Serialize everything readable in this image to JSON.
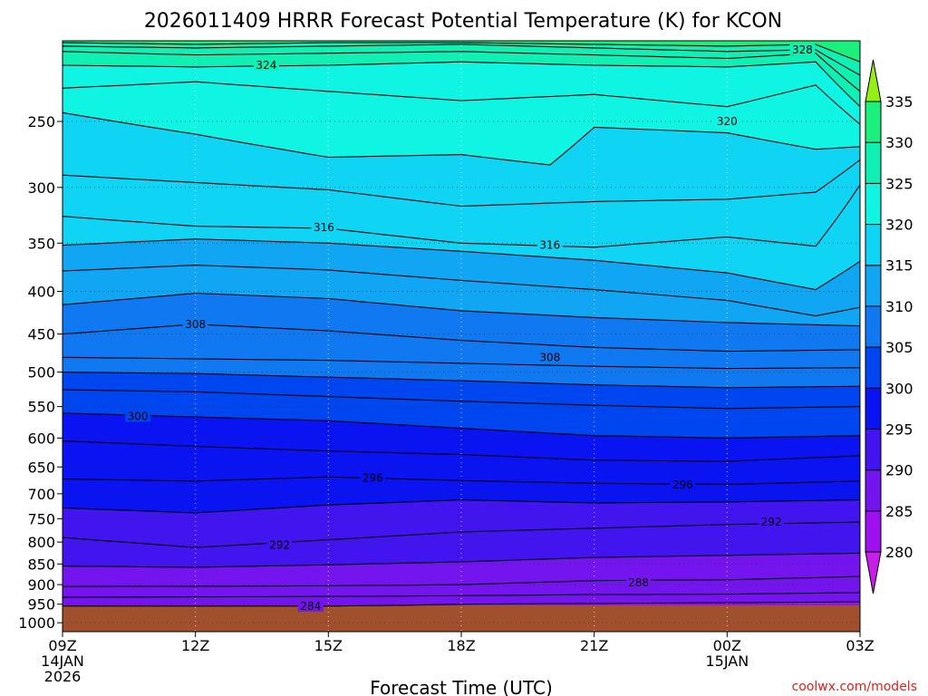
{
  "chart_data": {
    "type": "contour",
    "title": "2026011409 HRRR Forecast Potential Temperature (K) for KCON",
    "xlabel": "Forecast Time (UTC)",
    "ylabel": "",
    "x_ticks": [
      {
        "hour": 9,
        "line1": "09Z",
        "line2": "14JAN",
        "line3": "2026"
      },
      {
        "hour": 12,
        "line1": "12Z",
        "line2": "",
        "line3": ""
      },
      {
        "hour": 15,
        "line1": "15Z",
        "line2": "",
        "line3": ""
      },
      {
        "hour": 18,
        "line1": "18Z",
        "line2": "",
        "line3": ""
      },
      {
        "hour": 21,
        "line1": "21Z",
        "line2": "",
        "line3": ""
      },
      {
        "hour": 24,
        "line1": "00Z",
        "line2": "15JAN",
        "line3": ""
      },
      {
        "hour": 27,
        "line1": "03Z",
        "line2": "",
        "line3": ""
      }
    ],
    "xlim": [
      9,
      27
    ],
    "y_ticks": [
      250,
      300,
      350,
      400,
      450,
      500,
      550,
      600,
      650,
      700,
      750,
      800,
      850,
      900,
      950,
      1000
    ],
    "y_tick_labels": [
      "250",
      "300",
      "350",
      "400",
      "450",
      "500",
      "550",
      "600",
      "650",
      "700",
      "750",
      "800",
      "850",
      "900",
      "950",
      "1000"
    ],
    "ylim": [
      1025,
      200
    ],
    "y_scale": "log-pressure",
    "grid": true,
    "colorbar": {
      "levels": [
        280,
        285,
        290,
        295,
        300,
        305,
        310,
        315,
        320,
        325,
        330,
        335
      ],
      "colors": [
        "#c81ee8",
        "#9e10f0",
        "#7414ee",
        "#4214f0",
        "#0a14f2",
        "#0046f0",
        "#1078f0",
        "#10a6f4",
        "#10d4f4",
        "#10f4e4",
        "#10f0b4",
        "#1cf07c",
        "#16f02c",
        "#94f014"
      ]
    },
    "contours": [
      {
        "level": 284,
        "label": "284",
        "points": [
          [
            9,
            955
          ],
          [
            12,
            955
          ],
          [
            15,
            955
          ],
          [
            16.7,
            953
          ],
          [
            18,
            950
          ],
          [
            21,
            948
          ],
          [
            24,
            946
          ],
          [
            27,
            944
          ]
        ]
      },
      {
        "level": 286,
        "label": "",
        "points": [
          [
            9,
            932
          ],
          [
            12,
            931
          ],
          [
            15,
            930
          ],
          [
            18,
            928
          ],
          [
            21,
            925
          ],
          [
            24,
            924
          ],
          [
            27,
            920
          ]
        ]
      },
      {
        "level": 288,
        "label": "288",
        "points": [
          [
            9,
            905
          ],
          [
            12,
            904
          ],
          [
            15,
            903
          ],
          [
            18,
            900
          ],
          [
            21,
            890
          ],
          [
            24,
            888
          ],
          [
            27,
            880
          ]
        ]
      },
      {
        "level": 290,
        "label": "",
        "points": [
          [
            9,
            855
          ],
          [
            12,
            858
          ],
          [
            15,
            852
          ],
          [
            18,
            845
          ],
          [
            21,
            835
          ],
          [
            24,
            830
          ],
          [
            27,
            825
          ]
        ]
      },
      {
        "level": 292,
        "label": "292",
        "points": [
          [
            9,
            790
          ],
          [
            12,
            812
          ],
          [
            15,
            795
          ],
          [
            18,
            778
          ],
          [
            21,
            770
          ],
          [
            24,
            762
          ],
          [
            27,
            757
          ]
        ]
      },
      {
        "level": 294,
        "label": "",
        "points": [
          [
            9,
            728
          ],
          [
            12,
            738
          ],
          [
            15,
            722
          ],
          [
            18,
            712
          ],
          [
            21,
            718
          ],
          [
            24,
            716
          ],
          [
            27,
            712
          ]
        ]
      },
      {
        "level": 296,
        "label": "296",
        "points": [
          [
            9,
            672
          ],
          [
            12,
            676
          ],
          [
            15,
            668
          ],
          [
            18,
            675
          ],
          [
            21,
            680
          ],
          [
            24,
            682
          ],
          [
            27,
            676
          ]
        ]
      },
      {
        "level": 298,
        "label": "",
        "points": [
          [
            9,
            605
          ],
          [
            12,
            614
          ],
          [
            15,
            622
          ],
          [
            18,
            628
          ],
          [
            21,
            638
          ],
          [
            24,
            640
          ],
          [
            27,
            630
          ]
        ]
      },
      {
        "level": 300,
        "label": "300",
        "points": [
          [
            9,
            560
          ],
          [
            12,
            566
          ],
          [
            15,
            572
          ],
          [
            18,
            584
          ],
          [
            21,
            596
          ],
          [
            24,
            600
          ],
          [
            27,
            596
          ]
        ]
      },
      {
        "level": 302,
        "label": "",
        "points": [
          [
            9,
            525
          ],
          [
            12,
            528
          ],
          [
            15,
            535
          ],
          [
            18,
            542
          ],
          [
            21,
            548
          ],
          [
            24,
            553
          ],
          [
            27,
            550
          ]
        ]
      },
      {
        "level": 304,
        "label": "",
        "points": [
          [
            9,
            500
          ],
          [
            12,
            502
          ],
          [
            15,
            507
          ],
          [
            18,
            512
          ],
          [
            21,
            518
          ],
          [
            24,
            522
          ],
          [
            27,
            520
          ]
        ]
      },
      {
        "level": 306,
        "label": "",
        "points": [
          [
            9,
            480
          ],
          [
            12,
            482
          ],
          [
            15,
            484
          ],
          [
            18,
            488
          ],
          [
            21,
            492
          ],
          [
            24,
            495
          ],
          [
            27,
            494
          ]
        ]
      },
      {
        "level": 308,
        "label": "308",
        "points": [
          [
            9,
            450
          ],
          [
            12,
            438
          ],
          [
            15,
            446
          ],
          [
            18,
            458
          ],
          [
            21,
            467
          ],
          [
            24,
            472
          ],
          [
            27,
            470
          ]
        ]
      },
      {
        "level": 310,
        "label": "",
        "points": [
          [
            9,
            415
          ],
          [
            12,
            402
          ],
          [
            15,
            408
          ],
          [
            18,
            422
          ],
          [
            21,
            430
          ],
          [
            24,
            436
          ],
          [
            27,
            440
          ]
        ]
      },
      {
        "level": 312,
        "label": "",
        "points": [
          [
            9,
            378
          ],
          [
            12,
            372
          ],
          [
            15,
            377
          ],
          [
            18,
            388
          ],
          [
            21,
            398
          ],
          [
            24,
            410
          ],
          [
            26,
            428
          ],
          [
            27,
            418
          ]
        ]
      },
      {
        "level": 314,
        "label": "",
        "points": [
          [
            9,
            352
          ],
          [
            12,
            346
          ],
          [
            15,
            350
          ],
          [
            18,
            358
          ],
          [
            21,
            367
          ],
          [
            24,
            380
          ],
          [
            26,
            398
          ],
          [
            27,
            368
          ]
        ]
      },
      {
        "level": 316,
        "label": "316",
        "points": [
          [
            9,
            325
          ],
          [
            12,
            334
          ],
          [
            15,
            336
          ],
          [
            18,
            350
          ],
          [
            21,
            354
          ],
          [
            24,
            344
          ],
          [
            26,
            353
          ],
          [
            27,
            298
          ]
        ]
      },
      {
        "level": 318,
        "label": "",
        "points": [
          [
            9,
            290
          ],
          [
            12,
            296
          ],
          [
            15,
            302
          ],
          [
            18,
            316
          ],
          [
            21,
            312
          ],
          [
            24,
            310
          ],
          [
            26,
            304
          ],
          [
            27,
            278
          ]
        ]
      },
      {
        "level": 320,
        "label": "320",
        "points": [
          [
            9,
            244
          ],
          [
            12,
            259
          ],
          [
            15,
            276
          ],
          [
            18,
            274
          ],
          [
            20,
            282
          ],
          [
            21,
            254
          ],
          [
            24,
            258
          ],
          [
            26,
            270
          ],
          [
            27,
            268
          ]
        ]
      },
      {
        "level": 322,
        "label": "",
        "points": [
          [
            9,
            228
          ],
          [
            12,
            224
          ],
          [
            15,
            230
          ],
          [
            18,
            236
          ],
          [
            21,
            232
          ],
          [
            24,
            240
          ],
          [
            26,
            226
          ],
          [
            27,
            252
          ]
        ]
      },
      {
        "level": 324,
        "label": "324",
        "points": [
          [
            9,
            214
          ],
          [
            12,
            215
          ],
          [
            15,
            214
          ],
          [
            18,
            212
          ],
          [
            21,
            214
          ],
          [
            24,
            215
          ],
          [
            26,
            212
          ],
          [
            27,
            240
          ]
        ]
      },
      {
        "level": 326,
        "label": "",
        "points": [
          [
            9,
            206
          ],
          [
            12,
            208
          ],
          [
            15,
            207
          ],
          [
            18,
            206
          ],
          [
            21,
            208
          ],
          [
            24,
            210
          ],
          [
            26,
            207
          ],
          [
            27,
            230
          ]
        ]
      },
      {
        "level": 328,
        "label": "328",
        "points": [
          [
            9,
            203
          ],
          [
            12,
            204
          ],
          [
            15,
            203
          ],
          [
            18,
            202
          ],
          [
            21,
            204
          ],
          [
            24,
            206
          ],
          [
            26,
            205
          ],
          [
            27,
            220
          ]
        ]
      },
      {
        "level": 330,
        "label": "",
        "points": [
          [
            9,
            201
          ],
          [
            12,
            202
          ],
          [
            15,
            201
          ],
          [
            18,
            201
          ],
          [
            21,
            202
          ],
          [
            24,
            203
          ],
          [
            26,
            202
          ],
          [
            27,
            212
          ]
        ]
      }
    ],
    "contour_label_positions": [
      {
        "label": "284",
        "hour": 14.6,
        "p": 955
      },
      {
        "label": "288",
        "hour": 22.0,
        "p": 895
      },
      {
        "label": "292",
        "hour": 13.9,
        "p": 807
      },
      {
        "label": "292",
        "hour": 25.0,
        "p": 757
      },
      {
        "label": "296",
        "hour": 16.0,
        "p": 670
      },
      {
        "label": "296",
        "hour": 23.0,
        "p": 683
      },
      {
        "label": "300",
        "hour": 10.7,
        "p": 565
      },
      {
        "label": "308",
        "hour": 12.0,
        "p": 438
      },
      {
        "label": "308",
        "hour": 20.0,
        "p": 480
      },
      {
        "label": "316",
        "hour": 14.9,
        "p": 335
      },
      {
        "label": "316",
        "hour": 20.0,
        "p": 352
      },
      {
        "label": "320",
        "hour": 24.0,
        "p": 250
      },
      {
        "label": "324",
        "hour": 13.6,
        "p": 214
      },
      {
        "label": "328",
        "hour": 25.7,
        "p": 205
      }
    ]
  },
  "credit": "coolwx.com/models"
}
